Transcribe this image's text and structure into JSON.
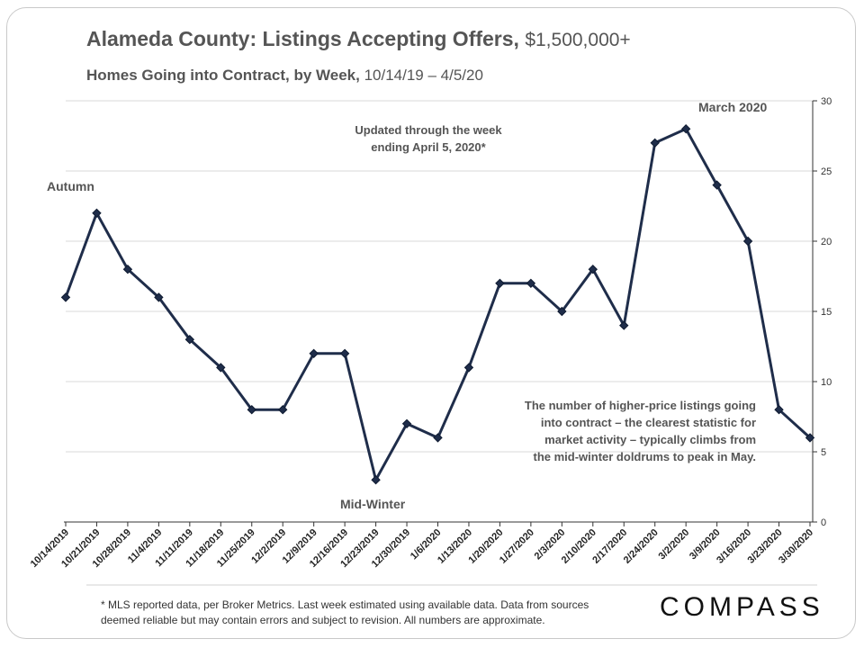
{
  "title": "Alameda County: Listings Accepting Offers,",
  "title_amount": "$1,500,000+",
  "subtitle": "Homes Going into Contract, by Week,",
  "subtitle_range": "10/14/19 – 4/5/20",
  "annotations": {
    "updated_line1": "Updated through the week",
    "updated_line2": "ending April 5, 2020*",
    "autumn": "Autumn",
    "midwinter": "Mid-Winter",
    "march": "March 2020",
    "note_lines": [
      "The number of higher-price listings going",
      "into contract – the clearest statistic for",
      "market activity – typically climbs from",
      "the mid-winter doldrums to peak in May."
    ]
  },
  "footnote_line1": "* MLS reported data, per Broker Metrics. Last week estimated using available data. Data from sources",
  "footnote_line2": "deemed reliable but may contain errors and subject to revision. All numbers are approximate.",
  "logo": "COMPASS",
  "colors": {
    "line": "#1f2d4a",
    "marker": "#1f2d4a",
    "grid": "#d9d9d9",
    "text": "#555555"
  },
  "chart_data": {
    "type": "line",
    "title": "Alameda County: Listings Accepting Offers, $1,500,000+",
    "subtitle": "Homes Going into Contract, by Week, 10/14/19 – 4/5/20",
    "categories": [
      "10/14/2019",
      "10/21/2019",
      "10/28/2019",
      "11/4/2019",
      "11/11/2019",
      "11/18/2019",
      "11/25/2019",
      "12/2/2019",
      "12/9/2019",
      "12/16/2019",
      "12/23/2019",
      "12/30/2019",
      "1/6/2020",
      "1/13/2020",
      "1/20/2020",
      "1/27/2020",
      "2/3/2020",
      "2/10/2020",
      "2/17/2020",
      "2/24/2020",
      "3/2/2020",
      "3/9/2020",
      "3/16/2020",
      "3/23/2020",
      "3/30/2020"
    ],
    "values": [
      16,
      22,
      18,
      16,
      13,
      11,
      8,
      8,
      12,
      12,
      3,
      7,
      6,
      11,
      17,
      17,
      15,
      18,
      14,
      27,
      28,
      24,
      20,
      8,
      6
    ],
    "ylim": [
      0,
      30
    ],
    "yticks": [
      0,
      5,
      10,
      15,
      20,
      25,
      30
    ],
    "y_axis_side": "right",
    "grid": true
  }
}
